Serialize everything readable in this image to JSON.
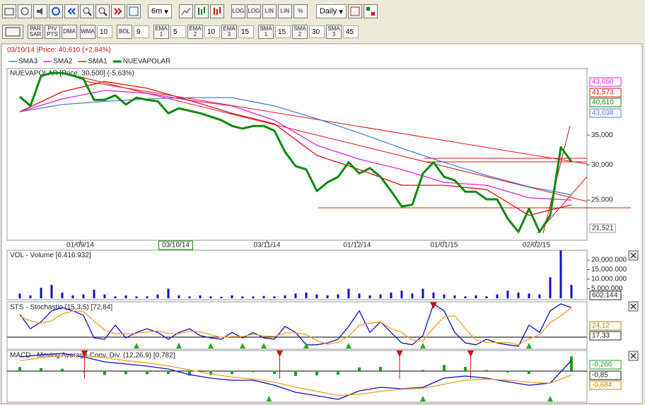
{
  "toolbar": {
    "period": "6m",
    "buttons": [
      "LOG",
      "LOG",
      "LIN",
      "LIN",
      "%"
    ],
    "interval": "Daily"
  },
  "indicators": [
    {
      "label": "PAR SAR"
    },
    {
      "label": "PIV PTS"
    },
    {
      "label": "DMA"
    },
    {
      "label": "WMA",
      "value": 10
    },
    {
      "label": "BOL",
      "value": 9
    },
    {
      "label": "EMA 1",
      "value": 5
    },
    {
      "label": "EMA 2",
      "value": 10
    },
    {
      "label": "EMA 3",
      "value": 15
    },
    {
      "label": "SMA 1",
      "value": 15
    },
    {
      "label": "SMA 2",
      "value": 30
    },
    {
      "label": "SMA 3",
      "value": 45
    }
  ],
  "header": "03/10/14 |Price: 40,610 (+2,84%)",
  "chart_data": [
    {
      "type": "line",
      "title": "NUEVAPOLAR [Price: 30,500] (-5,63%)",
      "log": true,
      "xlim": [
        -1.2,
        53.47
      ],
      "ylim": [
        20300,
        49400
      ],
      "yticks": [
        {
          "value": 25000,
          "label": "25,000"
        },
        {
          "value": 30000,
          "label": "30,000"
        },
        {
          "value": 35000,
          "label": "35,000"
        }
      ],
      "xticks": [
        {
          "value": 5.7,
          "label": "01/09/14"
        },
        {
          "value": 14.7,
          "label": "03/10/14"
        },
        {
          "value": 23.3,
          "label": "03/11/14"
        },
        {
          "value": 31.8,
          "label": "01/12/14"
        },
        {
          "value": 40,
          "label": "01/01/15"
        },
        {
          "value": 48.7,
          "label": "02/02/15"
        }
      ],
      "highlighted_xtick": 1,
      "series": [
        {
          "name": "SMA3",
          "color": "#4a7fdc",
          "x": [
            0,
            4,
            8,
            12,
            16,
            20,
            24,
            28,
            32,
            36,
            40,
            44,
            48,
            52
          ],
          "values": [
            39500,
            41000,
            41700,
            42200,
            42500,
            42500,
            40700,
            38100,
            35400,
            32700,
            30400,
            28400,
            26800,
            25700
          ]
        },
        {
          "name": "SMA2",
          "color": "#e020e0",
          "x": [
            0,
            4,
            8,
            12,
            16,
            20,
            24,
            28,
            32,
            36,
            40,
            44,
            48,
            52
          ],
          "values": [
            39500,
            42200,
            44100,
            43500,
            41900,
            40700,
            37800,
            33200,
            30900,
            29300,
            27400,
            27000,
            25300,
            25000
          ]
        },
        {
          "name": "SMA1",
          "color": "#e01010",
          "x": [
            0,
            4,
            8,
            12,
            16,
            20,
            24,
            28,
            32,
            36,
            40,
            44,
            48,
            52
          ],
          "values": [
            39500,
            43800,
            46200,
            44600,
            41900,
            39200,
            37100,
            31500,
            29300,
            27000,
            27000,
            26400,
            23100,
            24400
          ]
        },
        {
          "name": "NUEVAPOLAR",
          "color": "#0a8a0a",
          "x": [
            0,
            1,
            2,
            3,
            4,
            5,
            6,
            7,
            8,
            9,
            10,
            11,
            12,
            13,
            14,
            15,
            16,
            17,
            18,
            19,
            20,
            21,
            22,
            23,
            24,
            25,
            26,
            27,
            28,
            29,
            30,
            31,
            32,
            33,
            34,
            35,
            36,
            37,
            38,
            39,
            40,
            41,
            42,
            43,
            44,
            45,
            46,
            47,
            48,
            49,
            50,
            51,
            52
          ],
          "values": [
            42700,
            40700,
            47500,
            48300,
            48300,
            47600,
            46800,
            42000,
            42000,
            43000,
            41000,
            42500,
            42000,
            41700,
            39200,
            40200,
            39700,
            39200,
            38500,
            37800,
            36700,
            36200,
            36700,
            36700,
            35800,
            32100,
            29800,
            29300,
            26200,
            27400,
            28200,
            30400,
            28700,
            29500,
            28200,
            26200,
            24200,
            24400,
            28700,
            30400,
            28200,
            27700,
            26100,
            26100,
            25100,
            25100,
            22700,
            21200,
            23900,
            21200,
            23100,
            32900,
            30500
          ]
        }
      ],
      "right_labels": [
        {
          "label": "43,650",
          "color": "#e020e0"
        },
        {
          "label": "41,573",
          "color": "#e01010"
        },
        {
          "label": "40,610",
          "color": "#0a8a0a"
        },
        {
          "label": "43,038",
          "color": "#4a7fdc"
        }
      ],
      "low_label": "21,521"
    },
    {
      "type": "bar",
      "title": "VOL - Volume [6.416.932]",
      "xlim": [
        -1.2,
        53.47
      ],
      "ylim": [
        0,
        25000000
      ],
      "color": "#1010c0",
      "yticks": [
        {
          "value": 5000000,
          "label": "5.000.000"
        },
        {
          "value": 10000000,
          "label": "10.000.000"
        },
        {
          "value": 15000000,
          "label": "15.000.000"
        },
        {
          "value": 20000000,
          "label": "20.000.000"
        }
      ],
      "x": [
        0,
        1,
        2,
        3,
        4,
        5,
        6,
        7,
        8,
        9,
        10,
        11,
        12,
        13,
        14,
        15,
        16,
        17,
        18,
        19,
        20,
        21,
        22,
        23,
        24,
        25,
        26,
        27,
        28,
        29,
        30,
        31,
        32,
        33,
        34,
        35,
        36,
        37,
        38,
        39,
        40,
        41,
        42,
        43,
        44,
        45,
        46,
        47,
        48,
        49,
        50,
        51,
        52
      ],
      "values": [
        2500000,
        1500000,
        5500000,
        7000000,
        3000000,
        1500000,
        2000000,
        4500000,
        2000000,
        1000000,
        1500000,
        1000000,
        1000000,
        2000000,
        5000000,
        1500000,
        1000000,
        1500000,
        1000000,
        800000,
        1500000,
        1000000,
        1000000,
        1200000,
        1000000,
        1500000,
        2500000,
        3000000,
        2000000,
        1500000,
        2000000,
        5000000,
        2500000,
        1500000,
        2000000,
        3000000,
        4000000,
        2500000,
        5000000,
        3000000,
        2000000,
        1500000,
        1000000,
        1500000,
        1000000,
        2000000,
        4000000,
        3000000,
        2500000,
        2000000,
        11000000,
        25000000,
        7000000
      ],
      "right_labels": [
        {
          "label": "602.144",
          "color": "#222222"
        }
      ]
    },
    {
      "type": "line",
      "title": "STS - Stochastic (15,3,5) [72,84]",
      "xlim": [
        -1.2,
        53.47
      ],
      "ylim": [
        0,
        100
      ],
      "series": [
        {
          "color": "#1010c0",
          "x": [
            0,
            1,
            2,
            3,
            4,
            5,
            6,
            7,
            8,
            9,
            10,
            11,
            12,
            13,
            14,
            15,
            16,
            17,
            18,
            19,
            20,
            21,
            22,
            23,
            24,
            25,
            26,
            27,
            28,
            29,
            30,
            31,
            32,
            33,
            34,
            35,
            36,
            37,
            38,
            39,
            40,
            41,
            42,
            43,
            44,
            45,
            46,
            47,
            48,
            49,
            50,
            51,
            52
          ],
          "values": [
            74,
            43,
            58,
            82,
            89,
            82,
            72,
            23,
            20,
            51,
            23,
            35,
            43,
            35,
            20,
            35,
            43,
            28,
            23,
            20,
            35,
            23,
            35,
            23,
            20,
            48,
            35,
            8,
            8,
            12,
            20,
            48,
            82,
            35,
            58,
            35,
            12,
            8,
            28,
            97,
            82,
            35,
            12,
            8,
            20,
            12,
            8,
            5,
            51,
            35,
            82,
            97,
            89
          ]
        },
        {
          "color": "#f0a020",
          "x": [
            0,
            1,
            2,
            3,
            4,
            5,
            6,
            7,
            8,
            9,
            10,
            11,
            12,
            13,
            14,
            15,
            16,
            17,
            18,
            19,
            20,
            21,
            22,
            23,
            24,
            25,
            26,
            27,
            28,
            29,
            30,
            31,
            32,
            33,
            34,
            35,
            36,
            37,
            38,
            39,
            40,
            41,
            42,
            43,
            44,
            45,
            46,
            47,
            48,
            49,
            50,
            51,
            52
          ],
          "values": [
            70,
            60,
            55,
            60,
            75,
            82,
            80,
            60,
            40,
            32,
            32,
            33,
            36,
            38,
            33,
            32,
            37,
            36,
            30,
            24,
            26,
            26,
            31,
            27,
            26,
            34,
            34,
            30,
            17,
            9,
            13,
            27,
            50,
            55,
            58,
            43,
            35,
            18,
            16,
            45,
            69,
            71,
            43,
            18,
            13,
            13,
            13,
            8,
            21,
            30,
            56,
            71,
            89
          ]
        }
      ],
      "buy_signals": [
        11,
        15,
        18,
        21,
        23,
        27,
        31,
        38,
        48
      ],
      "sell_signals": [
        39
      ],
      "right_labels": [
        {
          "label": "24,12",
          "color": "#b08000"
        },
        {
          "label": "17,33",
          "color": "#222222"
        }
      ]
    },
    {
      "type": "line",
      "title": "MACD - Moving Average Conv. Div. (12,26,9) [0,782]",
      "xlim": [
        -1.2,
        53.47
      ],
      "ylim": [
        -3,
        2
      ],
      "series": [
        {
          "style": "histogram",
          "color": "#20a020",
          "x": [
            0,
            2,
            4,
            6,
            8,
            10,
            12,
            14,
            16,
            18,
            20,
            22,
            24,
            26,
            28,
            30,
            32,
            34,
            36,
            38,
            40,
            42,
            44,
            46,
            48,
            50,
            52
          ],
          "values": [
            0.38,
            0.28,
            0.22,
            -0.12,
            -0.41,
            -0.32,
            -0.33,
            -0.31,
            -0.46,
            -0.41,
            -0.32,
            -0.12,
            -0.3,
            -0.5,
            -0.44,
            -0.39,
            0.34,
            0.39,
            0.05,
            0.09,
            0.59,
            0.4,
            0.09,
            -0.16,
            -0.3,
            0.01,
            1.43
          ]
        },
        {
          "color": "#1010c0",
          "x": [
            0,
            2,
            4,
            6,
            8,
            10,
            12,
            14,
            16,
            18,
            20,
            22,
            24,
            26,
            28,
            30,
            32,
            34,
            36,
            38,
            40,
            42,
            44,
            46,
            48,
            50,
            52
          ],
          "values": [
            1.38,
            1.58,
            1.72,
            1.38,
            0.89,
            0.68,
            0.47,
            0.19,
            -0.36,
            -0.71,
            -0.92,
            -0.92,
            -1.4,
            -2.1,
            -2.44,
            -2.79,
            -1.96,
            -1.61,
            -1.75,
            -1.61,
            -0.71,
            -0.5,
            -0.71,
            -1.06,
            -1.4,
            -1.19,
            1.03
          ]
        },
        {
          "color": "#f0a020",
          "x": [
            0,
            2,
            4,
            6,
            8,
            10,
            12,
            14,
            16,
            18,
            20,
            22,
            24,
            26,
            28,
            30,
            32,
            34,
            36,
            38,
            40,
            42,
            44,
            46,
            48,
            50,
            52
          ],
          "values": [
            1.0,
            1.3,
            1.5,
            1.5,
            1.3,
            1.0,
            0.8,
            0.5,
            0.1,
            -0.3,
            -0.6,
            -0.8,
            -1.1,
            -1.6,
            -2.0,
            -2.4,
            -2.3,
            -2.0,
            -1.8,
            -1.7,
            -1.3,
            -0.9,
            -0.8,
            -0.9,
            -1.1,
            -1.2,
            -0.4
          ]
        }
      ],
      "buy_signals": [
        23.5,
        38,
        50
      ],
      "sell_signals": [
        6.1,
        24.5,
        35.8,
        42.5
      ],
      "right_labels": [
        {
          "label": "-0,266",
          "color": "#20a020"
        },
        {
          "label": "-0,85",
          "color": "#222222"
        },
        {
          "label": "-0,684",
          "color": "#d08000"
        }
      ]
    }
  ]
}
